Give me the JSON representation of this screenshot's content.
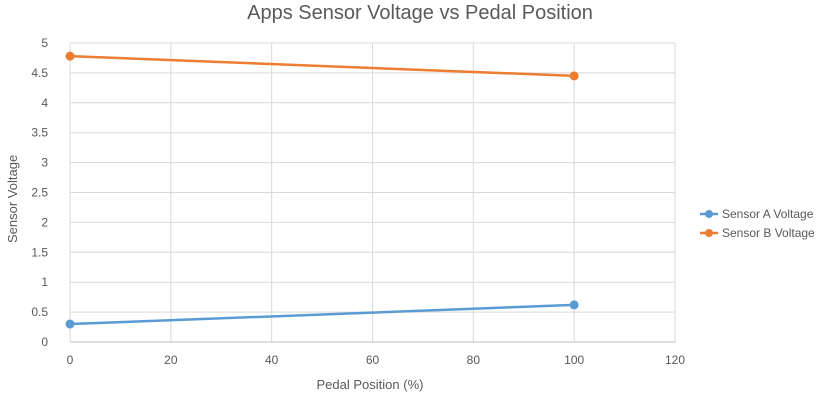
{
  "chart_data": {
    "type": "line",
    "title": "Apps Sensor Voltage vs Pedal Position",
    "xlabel": "Pedal Position (%)",
    "ylabel": "Sensor Voltage",
    "xlim": [
      0,
      120
    ],
    "ylim": [
      0,
      5
    ],
    "xticks": [
      0,
      20,
      40,
      60,
      80,
      100,
      120
    ],
    "yticks": [
      0,
      0.5,
      1,
      1.5,
      2,
      2.5,
      3,
      3.5,
      4,
      4.5,
      5
    ],
    "grid": true,
    "legend": "right",
    "series": [
      {
        "name": "Sensor A Voltage",
        "color": "#5b9bd5",
        "x": [
          0,
          100
        ],
        "y": [
          0.3,
          0.62
        ]
      },
      {
        "name": "Sensor B Voltage",
        "color": "#ed7d31",
        "x": [
          0,
          100
        ],
        "y": [
          4.78,
          4.45
        ]
      }
    ]
  }
}
